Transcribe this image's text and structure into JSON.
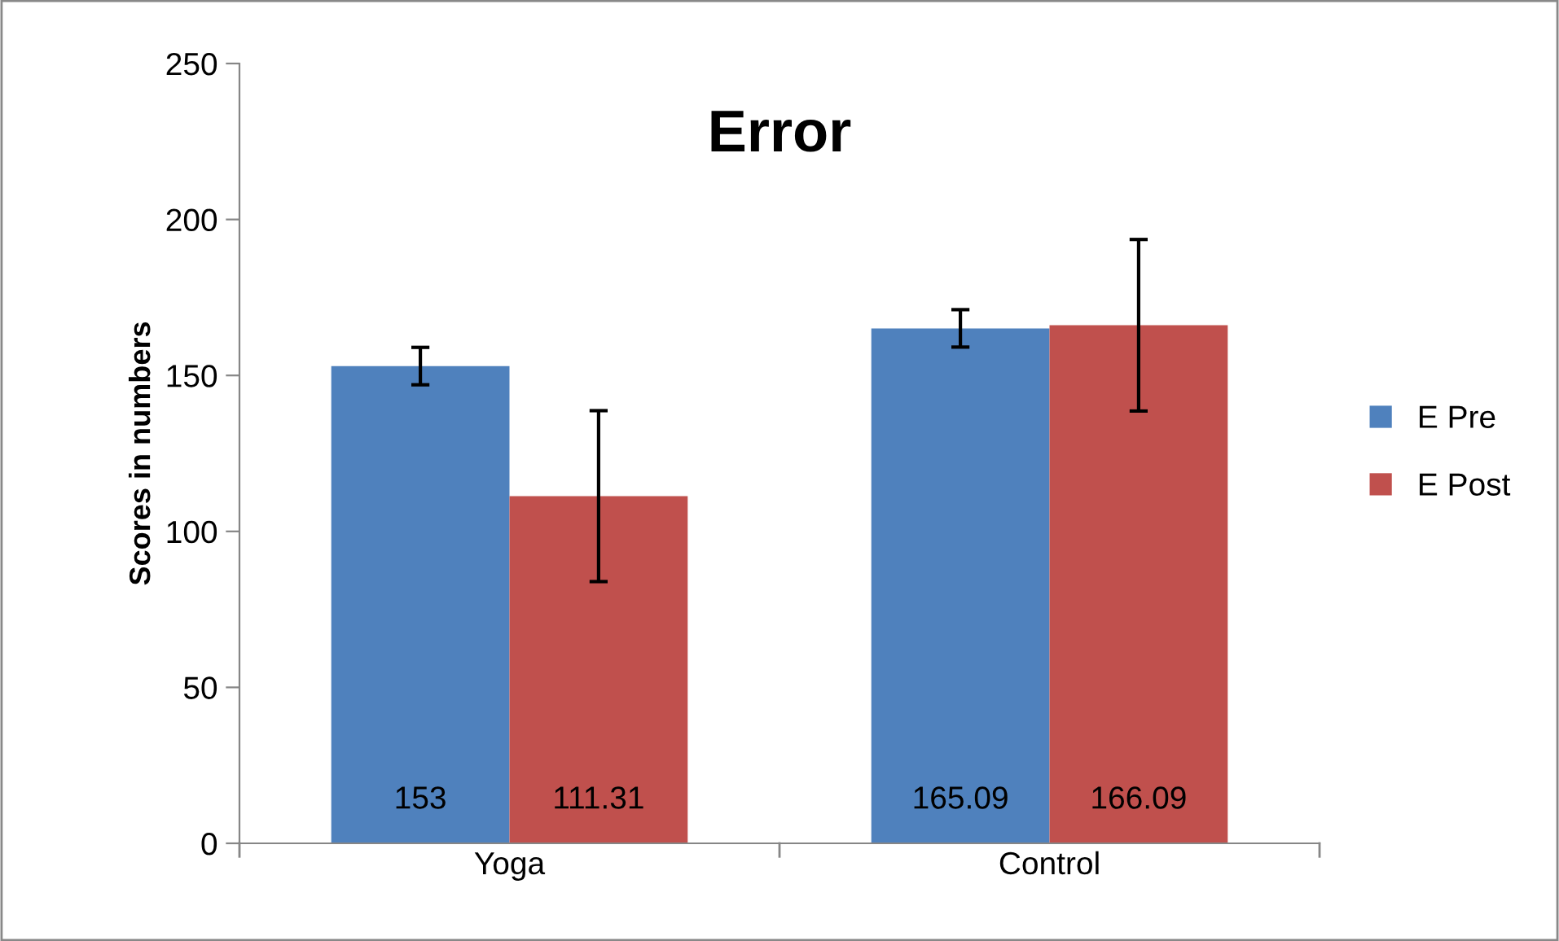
{
  "chart_data": {
    "type": "bar",
    "title": "Error",
    "ylabel": "Scores in numbers",
    "categories": [
      "Yoga",
      "Control"
    ],
    "series": [
      {
        "name": "E Pre",
        "color": "#4f81bd",
        "values": [
          153,
          165.09
        ],
        "errors": [
          6,
          6
        ]
      },
      {
        "name": "E Post",
        "color": "#c0504d",
        "values": [
          111.31,
          166.09
        ],
        "errors": [
          27.4,
          27.5
        ]
      }
    ],
    "ylim": [
      0,
      250
    ],
    "yticks": [
      0,
      50,
      100,
      150,
      200,
      250
    ],
    "grid": false,
    "legend": "right",
    "data_labels": true
  }
}
